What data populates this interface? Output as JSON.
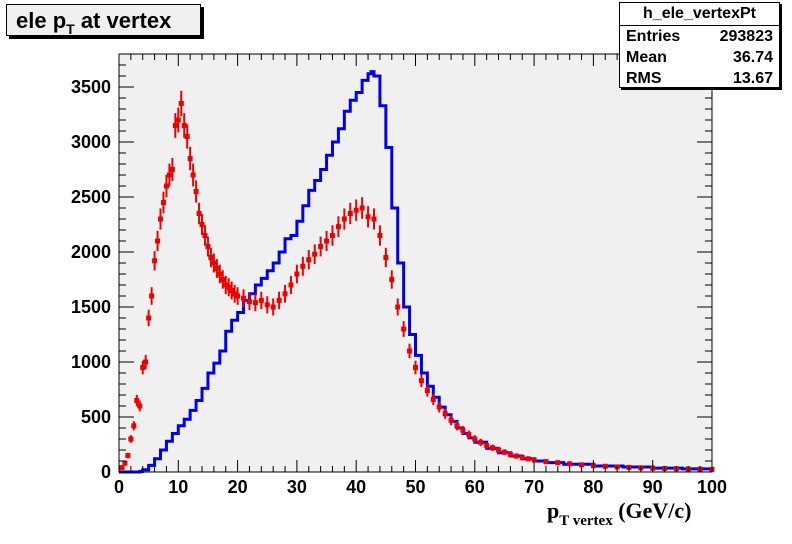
{
  "title": {
    "main": "ele p",
    "sub": "T",
    "rest": " at vertex"
  },
  "stats": {
    "name": "h_ele_vertexPt",
    "rows": [
      {
        "key": "Entries",
        "value": "293823"
      },
      {
        "key": "Mean",
        "value": "36.74"
      },
      {
        "key": "RMS",
        "value": "13.67"
      }
    ]
  },
  "xlabel": {
    "main": "p",
    "sub": "T vertex",
    "rest": " (GeV/c)"
  },
  "colors": {
    "frame_bg": "#f0f0f0",
    "blue": "#0000ee",
    "red": "#ee0000"
  },
  "chart_data": {
    "type": "line",
    "xlim": [
      0,
      100
    ],
    "ylim": [
      0,
      3800
    ],
    "x_ticks": [
      0,
      10,
      20,
      30,
      40,
      50,
      60,
      70,
      80,
      90,
      100
    ],
    "y_ticks": [
      0,
      500,
      1000,
      1500,
      2000,
      2500,
      3000,
      3500
    ],
    "grid": false,
    "series": [
      {
        "color": "blue",
        "style": "step",
        "points": [
          [
            0,
            0
          ],
          [
            2,
            0
          ],
          [
            3,
            0
          ],
          [
            3.5,
            5
          ],
          [
            4,
            20
          ],
          [
            5,
            60
          ],
          [
            6,
            120
          ],
          [
            7,
            200
          ],
          [
            8,
            280
          ],
          [
            9,
            350
          ],
          [
            10,
            420
          ],
          [
            11,
            480
          ],
          [
            12,
            560
          ],
          [
            13,
            650
          ],
          [
            14,
            760
          ],
          [
            15,
            900
          ],
          [
            16,
            990
          ],
          [
            17,
            1100
          ],
          [
            18,
            1280
          ],
          [
            19,
            1380
          ],
          [
            20,
            1450
          ],
          [
            21,
            1560
          ],
          [
            22,
            1620
          ],
          [
            23,
            1700
          ],
          [
            24,
            1760
          ],
          [
            25,
            1830
          ],
          [
            26,
            1900
          ],
          [
            27,
            2000
          ],
          [
            28,
            2120
          ],
          [
            29,
            2150
          ],
          [
            30,
            2280
          ],
          [
            31,
            2420
          ],
          [
            32,
            2560
          ],
          [
            33,
            2650
          ],
          [
            34,
            2750
          ],
          [
            35,
            2880
          ],
          [
            36,
            3000
          ],
          [
            37,
            3120
          ],
          [
            38,
            3280
          ],
          [
            39,
            3380
          ],
          [
            40,
            3450
          ],
          [
            41,
            3560
          ],
          [
            42,
            3620
          ],
          [
            42.5,
            3640
          ],
          [
            43,
            3600
          ],
          [
            44,
            3330
          ],
          [
            45,
            2950
          ],
          [
            46,
            2400
          ],
          [
            47,
            1900
          ],
          [
            48,
            1500
          ],
          [
            49,
            1250
          ],
          [
            50,
            1060
          ],
          [
            51,
            900
          ],
          [
            52,
            780
          ],
          [
            53,
            680
          ],
          [
            54,
            590
          ],
          [
            55,
            520
          ],
          [
            56,
            460
          ],
          [
            57,
            400
          ],
          [
            58,
            350
          ],
          [
            59,
            310
          ],
          [
            60,
            270
          ],
          [
            62,
            215
          ],
          [
            64,
            175
          ],
          [
            66,
            145
          ],
          [
            68,
            120
          ],
          [
            70,
            100
          ],
          [
            72,
            85
          ],
          [
            75,
            70
          ],
          [
            80,
            55
          ],
          [
            85,
            45
          ],
          [
            90,
            35
          ],
          [
            95,
            28
          ],
          [
            100,
            22
          ]
        ]
      },
      {
        "color": "red",
        "style": "errorbars",
        "points": [
          [
            0.5,
            40
          ],
          [
            1,
            80
          ],
          [
            1.5,
            150
          ],
          [
            2,
            300
          ],
          [
            2.5,
            420
          ],
          [
            3,
            650
          ],
          [
            3.5,
            600
          ],
          [
            4,
            950
          ],
          [
            4.5,
            1000
          ],
          [
            5,
            1400
          ],
          [
            5.5,
            1600
          ],
          [
            6,
            1920
          ],
          [
            6.5,
            2100
          ],
          [
            7,
            2300
          ],
          [
            7.5,
            2450
          ],
          [
            8,
            2600
          ],
          [
            8.5,
            2700
          ],
          [
            9,
            2750
          ],
          [
            9.5,
            3150
          ],
          [
            10,
            3200
          ],
          [
            10.5,
            3350
          ],
          [
            11,
            3150
          ],
          [
            11.5,
            3050
          ],
          [
            12,
            2850
          ],
          [
            12.5,
            2700
          ],
          [
            13,
            2550
          ],
          [
            13.5,
            2350
          ],
          [
            14,
            2250
          ],
          [
            14.5,
            2150
          ],
          [
            15,
            2050
          ],
          [
            15.5,
            1950
          ],
          [
            16,
            1900
          ],
          [
            16.5,
            1850
          ],
          [
            17,
            1800
          ],
          [
            17.5,
            1750
          ],
          [
            18,
            1700
          ],
          [
            18.5,
            1680
          ],
          [
            19,
            1650
          ],
          [
            19.5,
            1620
          ],
          [
            20,
            1600
          ],
          [
            21,
            1580
          ],
          [
            22,
            1550
          ],
          [
            23,
            1540
          ],
          [
            24,
            1560
          ],
          [
            25,
            1520
          ],
          [
            26,
            1500
          ],
          [
            27,
            1560
          ],
          [
            28,
            1620
          ],
          [
            29,
            1700
          ],
          [
            30,
            1800
          ],
          [
            31,
            1870
          ],
          [
            32,
            1930
          ],
          [
            33,
            1980
          ],
          [
            34,
            2050
          ],
          [
            35,
            2100
          ],
          [
            36,
            2150
          ],
          [
            37,
            2230
          ],
          [
            38,
            2300
          ],
          [
            39,
            2350
          ],
          [
            40,
            2380
          ],
          [
            41,
            2400
          ],
          [
            42,
            2320
          ],
          [
            43,
            2300
          ],
          [
            44,
            2150
          ],
          [
            45,
            1950
          ],
          [
            46,
            1750
          ],
          [
            47,
            1500
          ],
          [
            48,
            1300
          ],
          [
            49,
            1100
          ],
          [
            50,
            950
          ],
          [
            51,
            830
          ],
          [
            52,
            740
          ],
          [
            53,
            660
          ],
          [
            54,
            590
          ],
          [
            55,
            530
          ],
          [
            56,
            470
          ],
          [
            57,
            420
          ],
          [
            58,
            380
          ],
          [
            59,
            340
          ],
          [
            60,
            300
          ],
          [
            61,
            270
          ],
          [
            62,
            240
          ],
          [
            63,
            220
          ],
          [
            64,
            200
          ],
          [
            65,
            180
          ],
          [
            66,
            160
          ],
          [
            67,
            145
          ],
          [
            68,
            130
          ],
          [
            69,
            120
          ],
          [
            70,
            110
          ],
          [
            72,
            95
          ],
          [
            74,
            85
          ],
          [
            76,
            75
          ],
          [
            78,
            65
          ],
          [
            80,
            58
          ],
          [
            82,
            52
          ],
          [
            84,
            46
          ],
          [
            86,
            42
          ],
          [
            88,
            38
          ],
          [
            90,
            34
          ],
          [
            92,
            32
          ],
          [
            94,
            30
          ],
          [
            96,
            28
          ],
          [
            98,
            26
          ],
          [
            100,
            24
          ]
        ]
      }
    ]
  }
}
